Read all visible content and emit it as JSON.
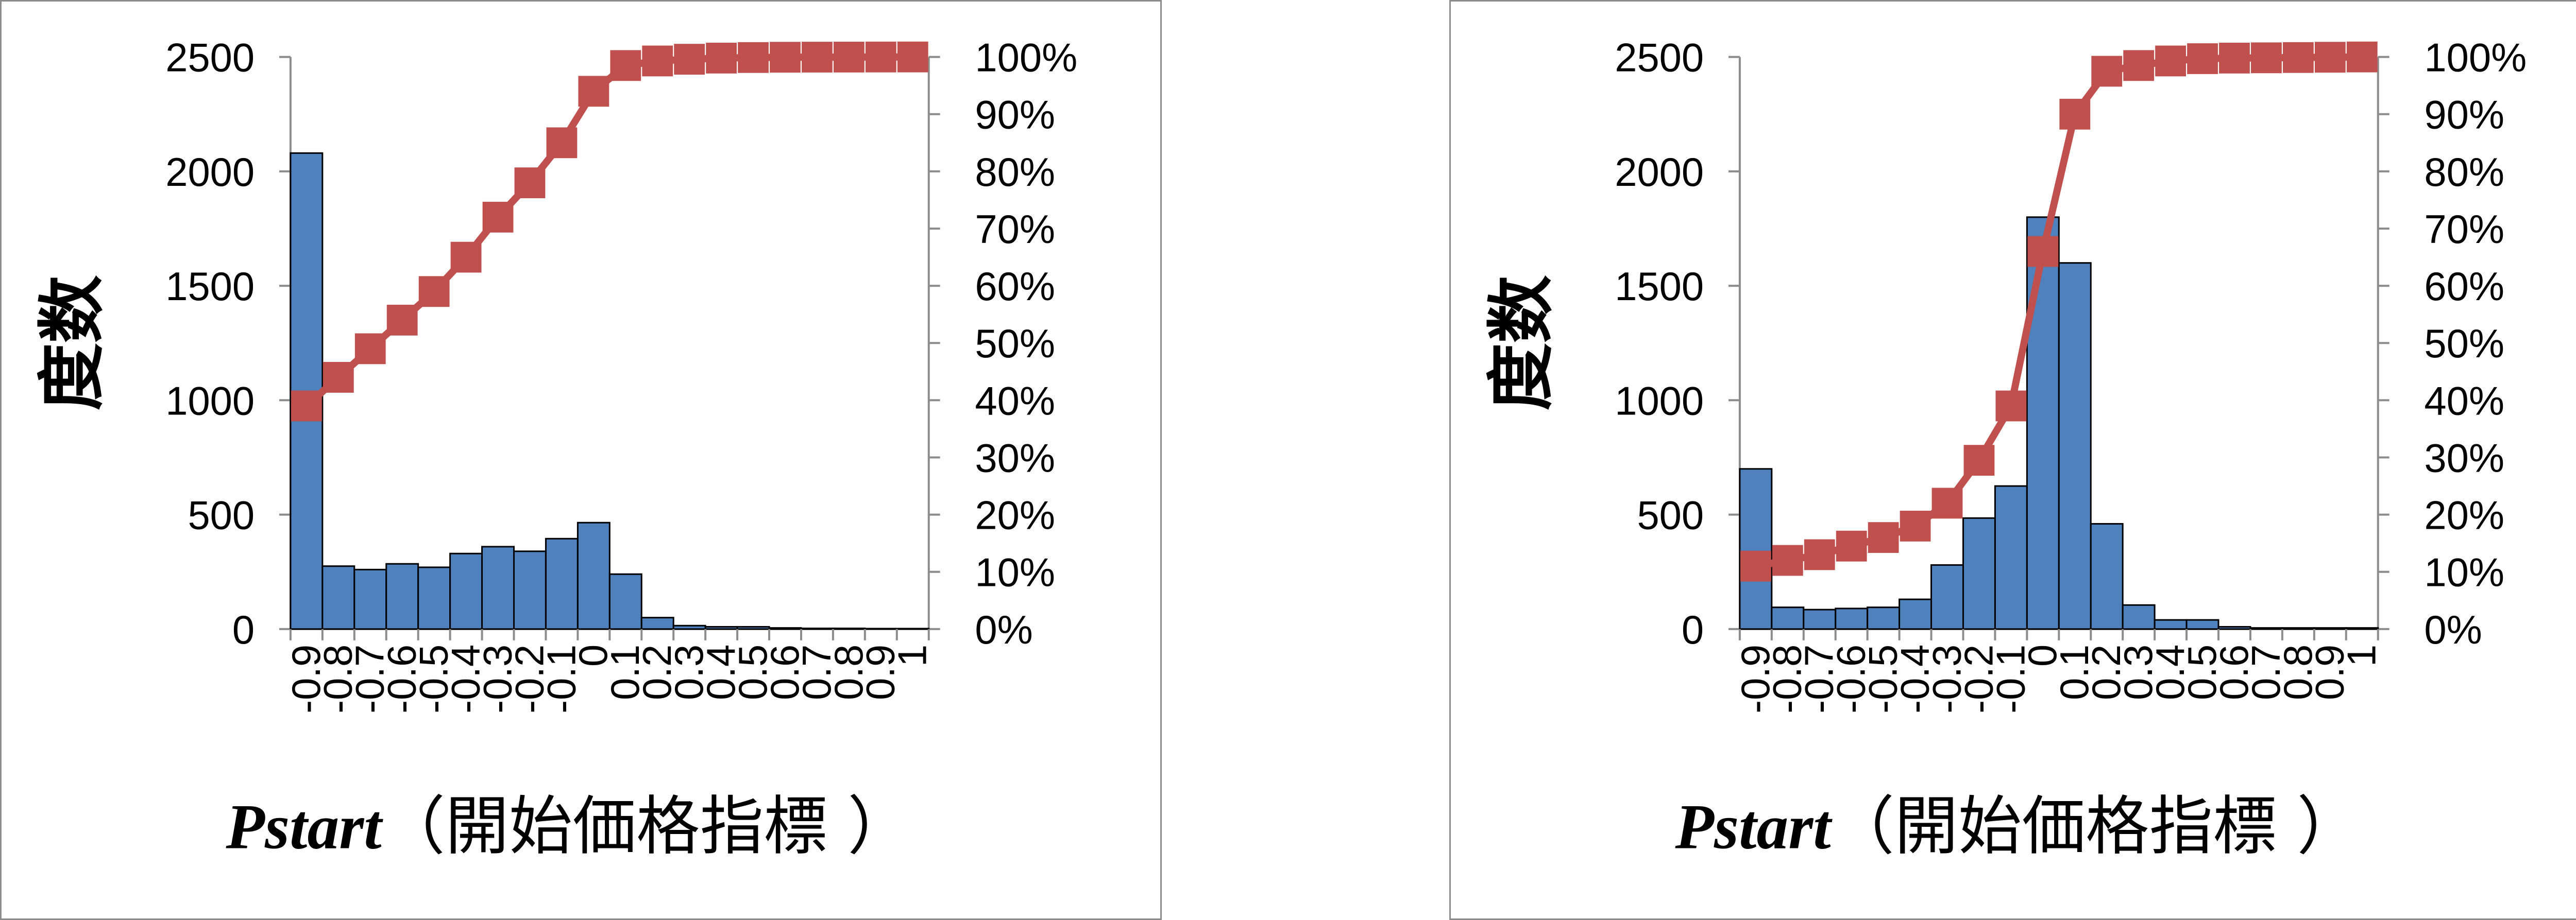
{
  "chart_data": [
    {
      "type": "bar",
      "combo": "bar+cumulative-line",
      "categories": [
        "-0.9",
        "-0.8",
        "-0.7",
        "-0.6",
        "-0.5",
        "-0.4",
        "-0.3",
        "-0.2",
        "-0.1",
        "0",
        "0.1",
        "0.2",
        "0.3",
        "0.4",
        "0.5",
        "0.6",
        "0.7",
        "0.8",
        "0.9",
        "1"
      ],
      "series": [
        {
          "type": "bar",
          "values": [
            2080,
            275,
            260,
            285,
            270,
            330,
            360,
            340,
            395,
            465,
            240,
            50,
            15,
            10,
            10,
            5,
            3,
            3,
            2,
            2
          ],
          "color": "#4f81bd"
        },
        {
          "type": "line",
          "axis": "right",
          "values": [
            39,
            44,
            49,
            54,
            59,
            65,
            72,
            78,
            85,
            94,
            98.5,
            99.3,
            99.6,
            99.8,
            99.9,
            99.95,
            99.97,
            99.98,
            99.99,
            100
          ],
          "color": "#c0504d"
        }
      ],
      "ylabel": "度数",
      "xlabel_italic": "Pstart",
      "xlabel_rest": "（開始価格指標 ）",
      "ylim": [
        0,
        2500
      ],
      "y_ticks": [
        "0",
        "500",
        "1000",
        "1500",
        "2000",
        "2500"
      ],
      "y2lim": [
        0,
        100
      ],
      "y2_ticks": [
        "0%",
        "10%",
        "20%",
        "30%",
        "40%",
        "50%",
        "60%",
        "70%",
        "80%",
        "90%",
        "100%"
      ],
      "grid": false,
      "legend": "none"
    },
    {
      "type": "bar",
      "combo": "bar+cumulative-line",
      "categories": [
        "-0.9",
        "-0.8",
        "-0.7",
        "-0.6",
        "-0.5",
        "-0.4",
        "-0.3",
        "-0.2",
        "-0.1",
        "0",
        "0.1",
        "0.2",
        "0.3",
        "0.4",
        "0.5",
        "0.6",
        "0.7",
        "0.8",
        "0.9",
        "1"
      ],
      "series": [
        {
          "type": "bar",
          "values": [
            700,
            95,
            85,
            90,
            95,
            130,
            280,
            485,
            625,
            1800,
            1600,
            460,
            105,
            40,
            40,
            10,
            5,
            5,
            5,
            5
          ],
          "color": "#4f81bd"
        },
        {
          "type": "line",
          "axis": "right",
          "values": [
            11,
            12,
            13,
            14.5,
            16,
            18,
            22,
            29.5,
            39,
            66,
            90,
            97.5,
            98.5,
            99.3,
            99.7,
            99.8,
            99.85,
            99.9,
            99.95,
            100
          ],
          "color": "#c0504d"
        }
      ],
      "ylabel": "度数",
      "xlabel_italic": "Pstart",
      "xlabel_rest": "（開始価格指標 ）",
      "ylim": [
        0,
        2500
      ],
      "y_ticks": [
        "0",
        "500",
        "1000",
        "1500",
        "2000",
        "2500"
      ],
      "y2lim": [
        0,
        100
      ],
      "y2_ticks": [
        "0%",
        "10%",
        "20%",
        "30%",
        "40%",
        "50%",
        "60%",
        "70%",
        "80%",
        "90%",
        "100%"
      ],
      "grid": false,
      "legend": "none"
    }
  ]
}
